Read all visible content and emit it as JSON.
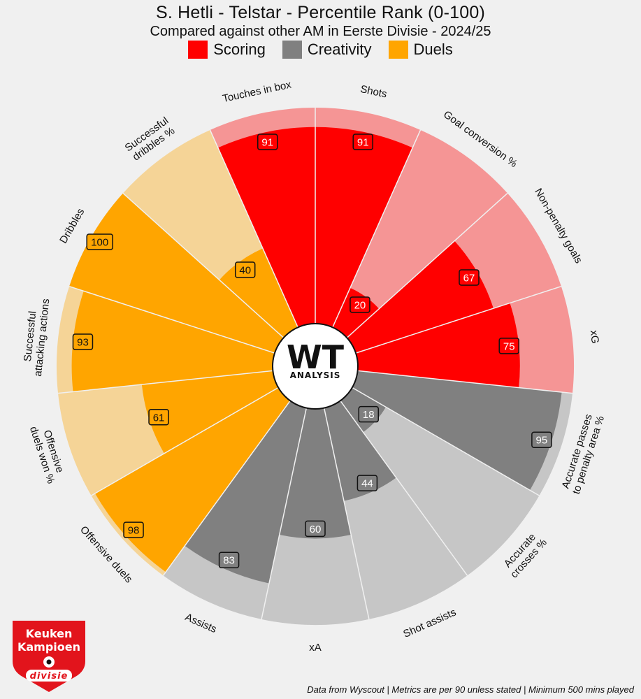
{
  "header": {
    "title": "S. Hetli - Telstar - Percentile Rank (0-100)",
    "subtitle": "Compared against other AM in Eerste Divisie - 2024/25"
  },
  "legend": [
    {
      "label": "Scoring",
      "color": "#ff0000"
    },
    {
      "label": "Creativity",
      "color": "#808080"
    },
    {
      "label": "Duels",
      "color": "#ffa500"
    }
  ],
  "center_logo": {
    "main": "WT",
    "sub": "ANALYSIS"
  },
  "league_logo": {
    "line1": "Keuken",
    "line2": "Kampioen",
    "line3": "divisie"
  },
  "footer": "Data from Wyscout | Metrics are per 90 unless stated | Minimum 500 mins played",
  "chart_data": {
    "type": "polar-bar",
    "value_range": [
      0,
      100
    ],
    "groups": {
      "Scoring": {
        "color": "#ff0000",
        "light": "#f59595"
      },
      "Creativity": {
        "color": "#808080",
        "light": "#c6c6c6"
      },
      "Duels": {
        "color": "#ffa500",
        "light": "#f5d497"
      }
    },
    "metrics": [
      {
        "label": "Touches in box",
        "value": 91,
        "group": "Scoring"
      },
      {
        "label": "Shots",
        "value": 91,
        "group": "Scoring"
      },
      {
        "label": "Goal conversion %",
        "value": 20,
        "group": "Scoring"
      },
      {
        "label": "Non-penalty goals",
        "value": 67,
        "group": "Scoring"
      },
      {
        "label": "xG",
        "value": 75,
        "group": "Scoring"
      },
      {
        "label": "Accurate passes to penalty area %",
        "value": 95,
        "group": "Creativity"
      },
      {
        "label": "Accurate crosses %",
        "value": 18,
        "group": "Creativity"
      },
      {
        "label": "Shot assists",
        "value": 44,
        "group": "Creativity"
      },
      {
        "label": "xA",
        "value": 60,
        "group": "Creativity"
      },
      {
        "label": "Assists",
        "value": 83,
        "group": "Creativity"
      },
      {
        "label": "Offensive duels",
        "value": 98,
        "group": "Duels"
      },
      {
        "label": "Offensive duels won %",
        "value": 61,
        "group": "Duels"
      },
      {
        "label": "Successful attacking actions",
        "value": 93,
        "group": "Duels"
      },
      {
        "label": "Dribbles",
        "value": 100,
        "group": "Duels"
      },
      {
        "label": "Successful dribbles %",
        "value": 40,
        "group": "Duels"
      }
    ]
  }
}
